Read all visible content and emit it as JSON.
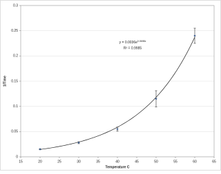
{
  "chart_data": {
    "type": "scatter",
    "x_label": "Temperature C",
    "y_label": "1/Time",
    "x": [
      20,
      30,
      40,
      50,
      60
    ],
    "series": [
      {
        "name": "1/Time",
        "color": "#3f5f8f",
        "values": [
          0.015,
          0.028,
          0.055,
          0.115,
          0.24
        ],
        "errors": [
          0.001,
          0.002,
          0.004,
          0.016,
          0.015
        ]
      }
    ],
    "trendline": {
      "a": 0.0036,
      "b": 0.0698,
      "equation": "y = 0.0036e",
      "exponent": "0.0698x",
      "r2": "R² = 0.9985"
    },
    "xlim": [
      15,
      65
    ],
    "xticks": [
      15,
      20,
      25,
      30,
      35,
      40,
      45,
      50,
      55,
      60,
      65
    ],
    "ylim": [
      0,
      0.3
    ],
    "yticks": [
      0,
      0.05,
      0.1,
      0.15,
      0.2,
      0.25,
      0.3
    ],
    "grid": true
  }
}
